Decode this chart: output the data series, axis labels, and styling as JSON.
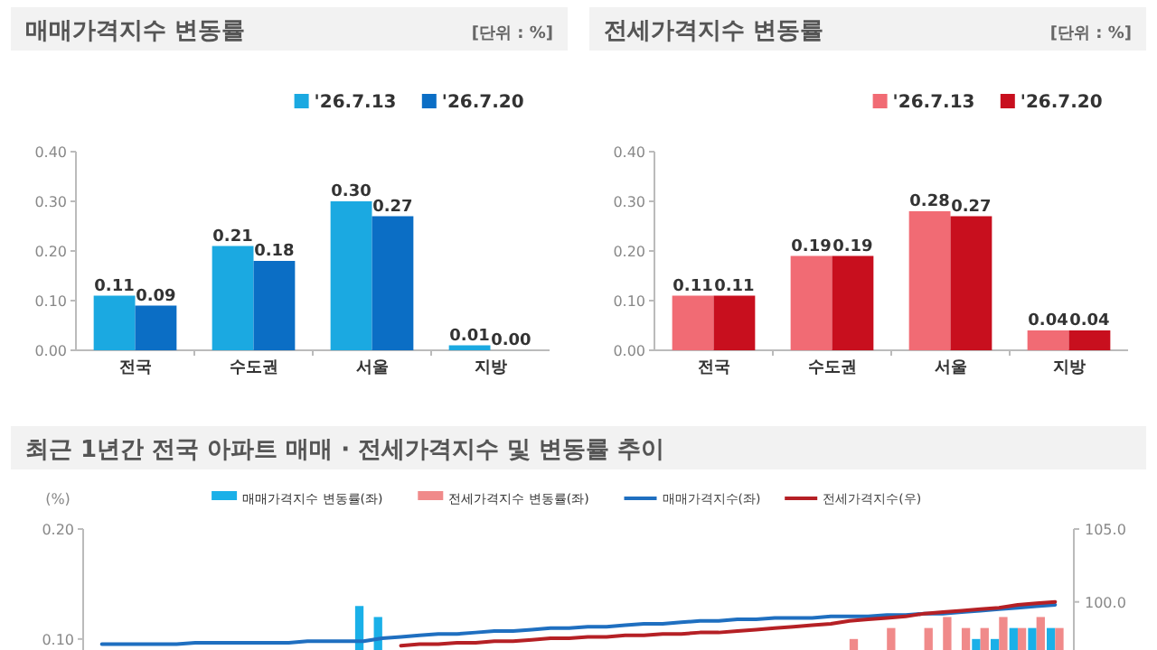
{
  "chart_data": [
    {
      "type": "bar",
      "title": "매매가격지수 변동률",
      "annotations": [
        "[단위 : %]"
      ],
      "legend": "top right",
      "categories": [
        "전국",
        "수도권",
        "서울",
        "지방"
      ],
      "ylim": [
        0,
        0.4
      ],
      "yticks": [
        {
          "value": 0,
          "label": "0.00"
        },
        {
          "value": 0.1,
          "label": "0.10"
        },
        {
          "value": 0.2,
          "label": "0.20"
        },
        {
          "value": 0.3,
          "label": "0.30"
        },
        {
          "value": 0.4,
          "label": "0.40"
        }
      ],
      "series": [
        {
          "name": "'26.7.13",
          "color": "#1ba9e1",
          "values": [
            0.11,
            0.21,
            0.3,
            0.01
          ],
          "value_labels": [
            "0.11",
            "0.21",
            "0.30",
            "0.01"
          ]
        },
        {
          "name": "'26.7.20",
          "color": "#0b6ec5",
          "values": [
            0.09,
            0.18,
            0.27,
            0.0
          ],
          "value_labels": [
            "0.09",
            "0.18",
            "0.27",
            "0.00"
          ]
        }
      ]
    },
    {
      "type": "bar",
      "title": "전세가격지수 변동률",
      "annotations": [
        "[단위 : %]"
      ],
      "legend": "top right",
      "categories": [
        "전국",
        "수도권",
        "서울",
        "지방"
      ],
      "ylim": [
        0,
        0.4
      ],
      "yticks": [
        {
          "value": 0,
          "label": "0.00"
        },
        {
          "value": 0.1,
          "label": "0.10"
        },
        {
          "value": 0.2,
          "label": "0.20"
        },
        {
          "value": 0.3,
          "label": "0.30"
        },
        {
          "value": 0.4,
          "label": "0.40"
        }
      ],
      "series": [
        {
          "name": "'26.7.13",
          "color": "#f16b74",
          "values": [
            0.11,
            0.19,
            0.28,
            0.04
          ],
          "value_labels": [
            "0.11",
            "0.19",
            "0.28",
            "0.04"
          ]
        },
        {
          "name": "'26.7.20",
          "color": "#c80f1e",
          "values": [
            0.11,
            0.19,
            0.27,
            0.04
          ],
          "value_labels": [
            "0.11",
            "0.19",
            "0.27",
            "0.04"
          ]
        }
      ]
    },
    {
      "type": "bar",
      "title": "최근 1년간 전국 아파트 매매 · 전세가격지수 및 변동률 추이",
      "ylabel": "(%)",
      "legend": "top",
      "categories": [
        null,
        null,
        null,
        null,
        null,
        null,
        null,
        null,
        null,
        null,
        null,
        null,
        null,
        null,
        null,
        null,
        null,
        null,
        null,
        null,
        null,
        null,
        null,
        null,
        null,
        null,
        null,
        null,
        null,
        null,
        null,
        null,
        null,
        null,
        null,
        null,
        null,
        null,
        null,
        null,
        null,
        null,
        null,
        null,
        null,
        null,
        null,
        null,
        null,
        null,
        null,
        null
      ],
      "ylim": [
        0.09,
        0.2
      ],
      "yticks": [
        {
          "value": 0.1,
          "label": "0.10"
        },
        {
          "value": 0.2,
          "label": "0.20"
        }
      ],
      "y2lim": [
        96.7,
        105
      ],
      "y2ticks": [
        {
          "value": 100,
          "label": "100.0"
        },
        {
          "value": 105,
          "label": "105.0"
        }
      ],
      "series": [
        {
          "name": "매매가격지수  변동률(좌)",
          "color": "#1ab0e8",
          "values": [
            null,
            null,
            null,
            null,
            null,
            null,
            null,
            null,
            null,
            null,
            null,
            null,
            null,
            null,
            0.13,
            0.12,
            null,
            null,
            null,
            null,
            null,
            null,
            null,
            null,
            null,
            null,
            null,
            null,
            null,
            null,
            null,
            null,
            null,
            null,
            null,
            null,
            null,
            null,
            null,
            null,
            null,
            null,
            null,
            null,
            null,
            null,
            null,
            0.1,
            0.1,
            0.11,
            0.11,
            0.11
          ]
        },
        {
          "name": "전세가격지수  변동률(좌)",
          "color": "#f08a8a",
          "values": [
            null,
            null,
            null,
            null,
            null,
            null,
            null,
            null,
            null,
            null,
            null,
            null,
            null,
            null,
            null,
            null,
            null,
            null,
            null,
            null,
            null,
            null,
            null,
            null,
            null,
            null,
            null,
            null,
            null,
            null,
            null,
            null,
            null,
            null,
            null,
            null,
            null,
            null,
            null,
            null,
            0.1,
            null,
            0.11,
            null,
            0.11,
            0.12,
            0.11,
            0.11,
            0.12,
            0.11,
            0.12,
            0.11
          ]
        },
        {
          "name": "매매가격지수(좌)",
          "type": "line",
          "axis": "y2",
          "color": "#1f6fc0",
          "values": [
            97.1,
            97.1,
            97.1,
            97.1,
            97.1,
            97.2,
            97.2,
            97.2,
            97.2,
            97.2,
            97.2,
            97.3,
            97.3,
            97.3,
            97.3,
            97.5,
            97.6,
            97.7,
            97.8,
            97.8,
            97.9,
            98.0,
            98.0,
            98.1,
            98.2,
            98.2,
            98.3,
            98.3,
            98.4,
            98.5,
            98.5,
            98.6,
            98.7,
            98.7,
            98.8,
            98.8,
            98.9,
            98.9,
            98.9,
            99.0,
            99.0,
            99.0,
            99.1,
            99.1,
            99.2,
            99.2,
            99.3,
            99.4,
            99.5,
            99.6,
            99.7,
            99.8
          ]
        },
        {
          "name": "전세가격지수(우)",
          "type": "line",
          "axis": "y2",
          "color": "#b52025",
          "values": [
            null,
            null,
            null,
            null,
            null,
            null,
            null,
            null,
            null,
            null,
            null,
            null,
            null,
            null,
            null,
            null,
            97.0,
            97.1,
            97.1,
            97.2,
            97.2,
            97.3,
            97.3,
            97.4,
            97.5,
            97.5,
            97.6,
            97.6,
            97.7,
            97.7,
            97.8,
            97.8,
            97.9,
            97.9,
            98.0,
            98.1,
            98.2,
            98.3,
            98.4,
            98.5,
            98.7,
            98.8,
            98.9,
            99.0,
            99.2,
            99.3,
            99.4,
            99.5,
            99.6,
            99.8,
            99.9,
            100.0
          ]
        }
      ]
    }
  ]
}
